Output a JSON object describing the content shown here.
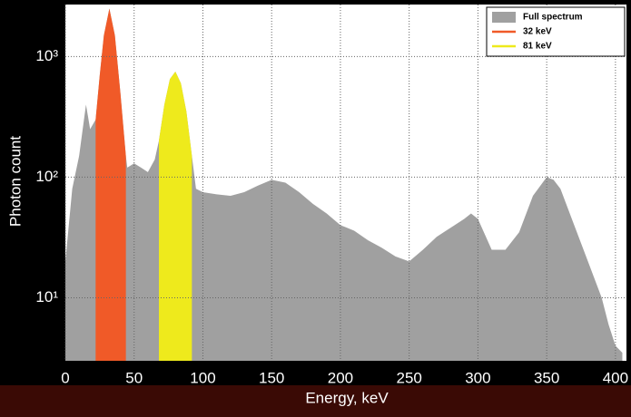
{
  "chart_data": {
    "type": "area",
    "xlabel": "Energy, keV",
    "ylabel": "Photon count",
    "xlim": [
      0,
      408
    ],
    "ylim": [
      3,
      2700
    ],
    "yscale": "log",
    "grid": true,
    "legend": "upper right",
    "xticks": [
      0,
      50,
      100,
      150,
      200,
      250,
      300,
      350,
      400
    ],
    "yticks": [
      {
        "value": 10,
        "label": "10¹"
      },
      {
        "value": 100,
        "label": "10²"
      },
      {
        "value": 1000,
        "label": "10³"
      }
    ],
    "series": [
      {
        "name": "Full spectrum",
        "color": "#a0a0a0",
        "x": [
          0,
          5,
          10,
          15,
          18,
          22,
          25,
          28,
          32,
          36,
          40,
          44,
          45,
          50,
          55,
          60,
          65,
          68,
          72,
          76,
          80,
          84,
          88,
          92,
          95,
          100,
          110,
          120,
          130,
          140,
          150,
          160,
          170,
          180,
          190,
          200,
          210,
          220,
          230,
          240,
          250,
          260,
          270,
          280,
          290,
          295,
          300,
          310,
          320,
          330,
          340,
          350,
          355,
          360,
          370,
          380,
          390,
          395,
          400,
          405
        ],
        "values": [
          20,
          80,
          150,
          400,
          250,
          300,
          700,
          1500,
          2500,
          1500,
          500,
          150,
          120,
          130,
          120,
          110,
          140,
          200,
          400,
          650,
          750,
          600,
          350,
          150,
          80,
          75,
          72,
          70,
          75,
          85,
          95,
          90,
          75,
          60,
          50,
          40,
          36,
          30,
          26,
          22,
          20,
          25,
          32,
          38,
          45,
          50,
          45,
          25,
          25,
          35,
          70,
          100,
          95,
          80,
          40,
          20,
          10,
          6,
          4,
          3.5
        ]
      },
      {
        "name": "32 keV",
        "color": "#f05a28",
        "x": [
          22,
          25,
          28,
          32,
          36,
          40,
          44
        ],
        "values": [
          300,
          700,
          1500,
          2500,
          1500,
          500,
          150
        ]
      },
      {
        "name": "81 keV",
        "color": "#eeea1c",
        "x": [
          68,
          72,
          76,
          80,
          84,
          88,
          92
        ],
        "values": [
          200,
          400,
          650,
          750,
          600,
          350,
          150
        ]
      }
    ]
  }
}
